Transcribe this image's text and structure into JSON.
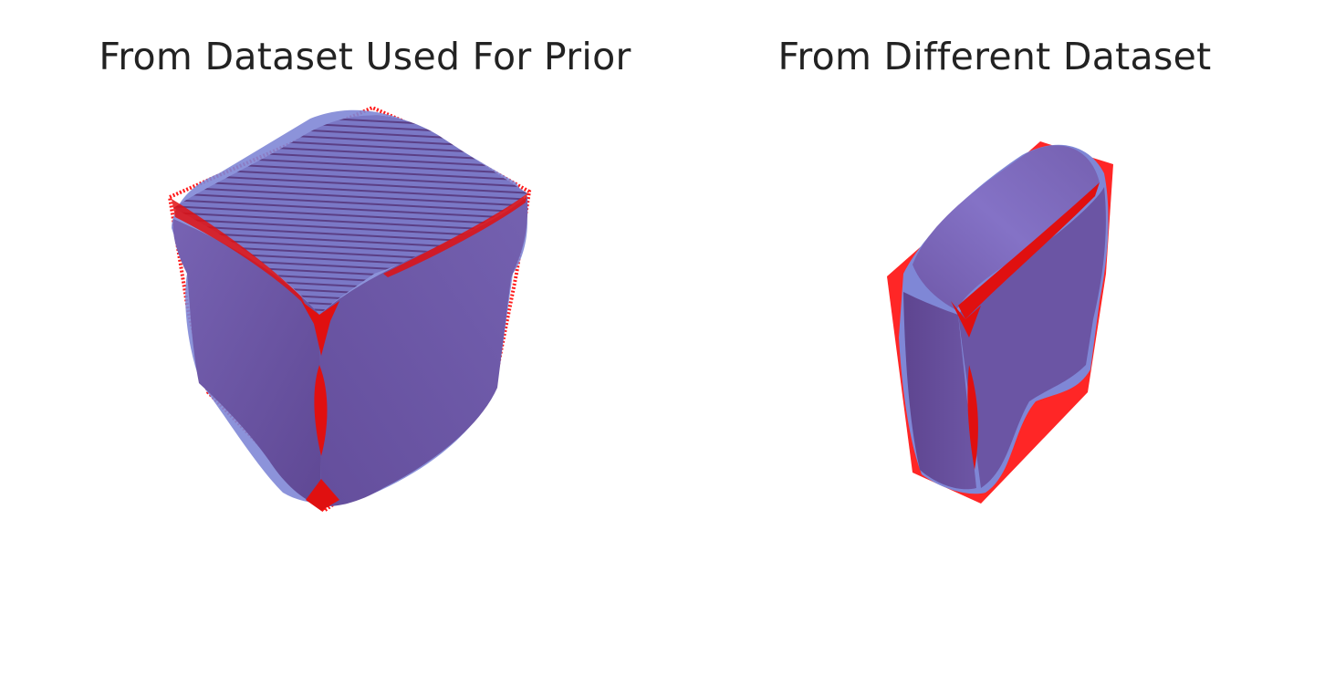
{
  "panels": [
    {
      "title": "From Dataset Used For Prior",
      "object": "cube-shaped mesh reconstruction"
    },
    {
      "title": "From Different Dataset",
      "object": "box-shaped mesh reconstruction"
    }
  ],
  "colors": {
    "mesh_fill": "#6f58a8",
    "mesh_light": "#7f72c4",
    "mesh_edge_glow": "#7f87d6",
    "point_cloud": "#ff1a1a",
    "title_text": "#222222",
    "background": "#ffffff"
  }
}
